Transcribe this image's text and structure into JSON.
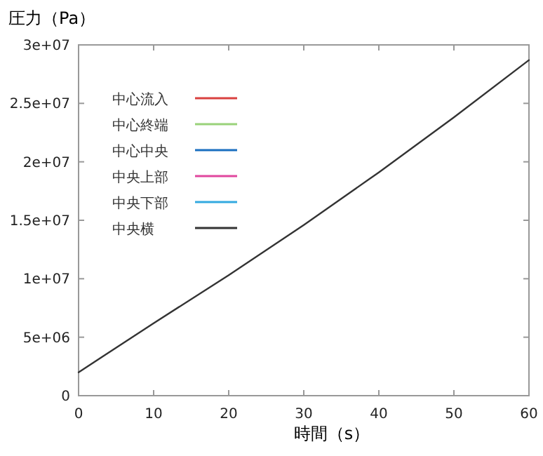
{
  "chart_data": {
    "type": "line",
    "ylabel": "圧力（Pa）",
    "xlabel": "時間（s）",
    "x": [
      0,
      10,
      20,
      30,
      40,
      50,
      60
    ],
    "xlim": [
      0,
      60
    ],
    "xticks": [
      0,
      10,
      20,
      30,
      40,
      50,
      60
    ],
    "ylim": [
      0,
      30000000
    ],
    "yticks": [
      {
        "value": 0,
        "label": "0"
      },
      {
        "value": 5000000,
        "label": "5e+06"
      },
      {
        "value": 10000000,
        "label": "1e+07"
      },
      {
        "value": 15000000,
        "label": "1.5e+07"
      },
      {
        "value": 20000000,
        "label": "2e+07"
      },
      {
        "value": 25000000,
        "label": "2.5e+07"
      },
      {
        "value": 30000000,
        "label": "3e+07"
      }
    ],
    "grid": false,
    "legend": "top left",
    "marker": "none",
    "line_style": "solid",
    "series": [
      {
        "name": "中心流入",
        "color": "#d9413f",
        "values": [
          null,
          null,
          null,
          null,
          null,
          null,
          null
        ]
      },
      {
        "name": "中心終端",
        "color": "#99d27a",
        "values": [
          null,
          null,
          null,
          null,
          null,
          null,
          null
        ]
      },
      {
        "name": "中心中央",
        "color": "#1a6fc0",
        "values": [
          null,
          null,
          null,
          null,
          null,
          null,
          null
        ]
      },
      {
        "name": "中央上部",
        "color": "#e0479e",
        "values": [
          null,
          null,
          null,
          null,
          null,
          null,
          null
        ]
      },
      {
        "name": "中央下部",
        "color": "#33a9e0",
        "values": [
          null,
          null,
          null,
          null,
          null,
          null,
          null
        ]
      },
      {
        "name": "中央横",
        "color": "#333333",
        "values": [
          2000000,
          6200000,
          10300000,
          14600000,
          19100000,
          23800000,
          28700000
        ]
      }
    ]
  }
}
